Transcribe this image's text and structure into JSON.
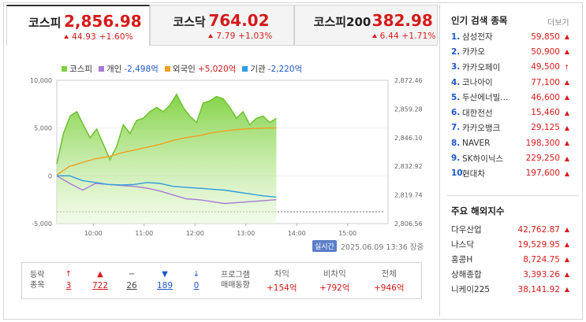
{
  "tabs": [
    {
      "name": "코스피",
      "price": "2,856.98",
      "change": "44.93 +1.60%"
    },
    {
      "name": "코스닥",
      "price": "764.02",
      "change": "7.79 +1.03%"
    },
    {
      "name": "코스피200",
      "price": "382.98",
      "change": "6.44 +1.71%"
    }
  ],
  "legend": [
    {
      "label": "코스피",
      "value": "",
      "color": "#7ed13f"
    },
    {
      "label": "개인",
      "value": "-2,498억",
      "color": "#a77bd6"
    },
    {
      "label": "외국인",
      "value": "+5,020억",
      "color": "#f0a020"
    },
    {
      "label": "기관",
      "value": "-2,220억",
      "color": "#2f9ee0"
    }
  ],
  "chart_data": {
    "type": "line",
    "x_ticks": [
      "10:00",
      "11:00",
      "12:00",
      "13:00",
      "14:00",
      "15:00"
    ],
    "left_axis": {
      "ticks": [
        "10,000",
        "5,000",
        "0",
        "-5,000"
      ],
      "ylim": [
        -5000,
        10000
      ]
    },
    "right_axis": {
      "ticks": [
        "2,872.46",
        "2,859.28",
        "2,846.10",
        "2,832.92",
        "2,819.74",
        "2,806.56"
      ],
      "ylim": [
        2806.56,
        2872.46
      ]
    },
    "series": [
      {
        "name": "코스피",
        "axis": "right",
        "values": [
          2834,
          2848,
          2856,
          2858,
          2852,
          2846,
          2850,
          2843,
          2836,
          2842,
          2852,
          2848,
          2854,
          2855,
          2858,
          2860,
          2858,
          2861,
          2866,
          2860,
          2856,
          2853,
          2862,
          2863,
          2865,
          2864,
          2860,
          2855,
          2858,
          2852,
          2855,
          2856,
          2853,
          2855
        ]
      },
      {
        "name": "개인",
        "values": [
          0,
          -800,
          -1500,
          -800,
          -900,
          -1000,
          -1100,
          -1300,
          -1600,
          -2000,
          -2400,
          -2500,
          -2700,
          -2900,
          -2800,
          -2700,
          -2600,
          -2498
        ]
      },
      {
        "name": "외국인",
        "values": [
          100,
          1000,
          1400,
          1800,
          2000,
          2400,
          2700,
          3000,
          3300,
          3700,
          4000,
          4200,
          4500,
          4700,
          4850,
          4950,
          5000,
          5020
        ]
      },
      {
        "name": "기관",
        "values": [
          0,
          0,
          -500,
          -700,
          -900,
          -950,
          -900,
          -700,
          -800,
          -1100,
          -1200,
          -1300,
          -1400,
          -1500,
          -1700,
          -1900,
          -2100,
          -2220
        ]
      }
    ]
  },
  "realtime_badge": "실시간",
  "timestamp": "2025.06.09 13:36 장중",
  "updown": {
    "label1": "등락",
    "label2": "종목",
    "items": [
      {
        "icon": "↑",
        "count": "3",
        "cls": "red"
      },
      {
        "icon": "▲",
        "count": "722",
        "cls": "red"
      },
      {
        "icon": "−",
        "count": "26",
        "cls": "gray"
      },
      {
        "icon": "▼",
        "count": "189",
        "cls": "blue"
      },
      {
        "icon": "↓",
        "count": "0",
        "cls": "blue"
      }
    ]
  },
  "program": {
    "label1": "프로그램",
    "label2": "매매동향",
    "cols": [
      {
        "header": "차익",
        "value": "+154억"
      },
      {
        "header": "비차익",
        "value": "+792억"
      },
      {
        "header": "전체",
        "value": "+946억"
      }
    ]
  },
  "popular": {
    "title": "인기 검색 종목",
    "more": "더보기",
    "items": [
      {
        "rank": "1.",
        "name": "삼성전자",
        "price": "59,850",
        "arrow": "▲"
      },
      {
        "rank": "2.",
        "name": "카카오",
        "price": "50,900",
        "arrow": "▲"
      },
      {
        "rank": "3.",
        "name": "카카오페이",
        "price": "49,500",
        "arrow": "↑"
      },
      {
        "rank": "4.",
        "name": "코나아이",
        "price": "77,100",
        "arrow": "▲"
      },
      {
        "rank": "5.",
        "name": "두산에너빌...",
        "price": "46,600",
        "arrow": "▲"
      },
      {
        "rank": "6.",
        "name": "대한전선",
        "price": "15,460",
        "arrow": "▲"
      },
      {
        "rank": "7.",
        "name": "카카오뱅크",
        "price": "29,125",
        "arrow": "▲"
      },
      {
        "rank": "8.",
        "name": "NAVER",
        "price": "198,300",
        "arrow": "▲"
      },
      {
        "rank": "9.",
        "name": "SK하이닉스",
        "price": "229,250",
        "arrow": "▲"
      },
      {
        "rank": "10.",
        "name": "현대차",
        "price": "197,600",
        "arrow": "▲"
      }
    ]
  },
  "indices": {
    "title": "주요 해외지수",
    "items": [
      {
        "name": "다우산업",
        "price": "42,762.87",
        "arrow": "▲"
      },
      {
        "name": "나스닥",
        "price": "19,529.95",
        "arrow": "▲"
      },
      {
        "name": "홍콩H",
        "price": "8,724.75",
        "arrow": "▲"
      },
      {
        "name": "상해종합",
        "price": "3,393.26",
        "arrow": "▲"
      },
      {
        "name": "니케이225",
        "price": "38,141.92",
        "arrow": "▲"
      }
    ]
  }
}
